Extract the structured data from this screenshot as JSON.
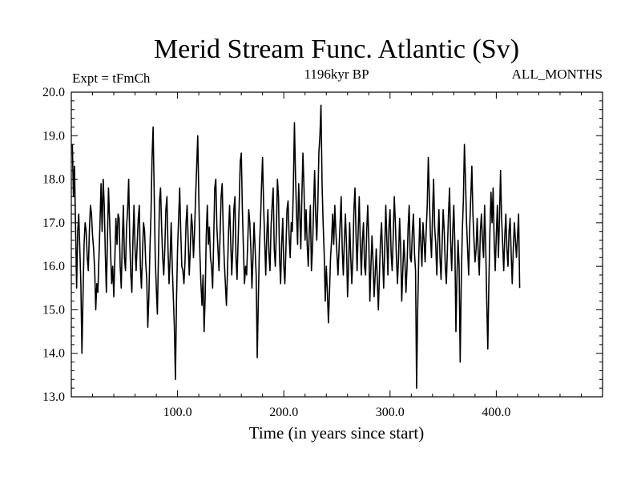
{
  "chart_data": {
    "type": "line",
    "title": "Merid Stream Func. Atlantic (Sv)",
    "subtitle_left": "Expt = tFmCh",
    "subtitle_center": "1196kyr BP",
    "subtitle_right": "ALL_MONTHS",
    "xlabel": "Time (in years since start)",
    "ylabel": "",
    "xlim": [
      0,
      500
    ],
    "ylim": [
      13.0,
      20.0
    ],
    "x_ticks": [
      100,
      200,
      300,
      400
    ],
    "x_tick_labels": [
      "100.0",
      "200.0",
      "300.0",
      "400.0"
    ],
    "y_ticks": [
      13,
      14,
      15,
      16,
      17,
      18,
      19,
      20
    ],
    "y_tick_labels": [
      "13.0",
      "14.0",
      "15.0",
      "16.0",
      "17.0",
      "18.0",
      "19.0",
      "20.0"
    ],
    "grid": false,
    "series": [
      {
        "name": "Merid Stream Func. Atlantic",
        "color": "#000000",
        "x_start": 1,
        "x_step": 1,
        "values": [
          18.8,
          17.6,
          18.3,
          16.9,
          15.5,
          16.8,
          17.2,
          16.4,
          15.6,
          14.0,
          15.3,
          16.5,
          17.0,
          16.8,
          16.2,
          15.9,
          16.8,
          17.4,
          17.2,
          16.7,
          16.4,
          15.9,
          15.0,
          15.6,
          15.4,
          16.2,
          17.0,
          17.9,
          16.8,
          18.0,
          17.4,
          16.3,
          15.4,
          16.6,
          17.8,
          17.1,
          16.3,
          15.6,
          16.0,
          15.3,
          16.2,
          17.1,
          16.5,
          17.2,
          17.1,
          16.0,
          15.5,
          16.6,
          17.4,
          16.2,
          15.9,
          16.9,
          17.3,
          18.0,
          16.6,
          15.8,
          15.4,
          16.6,
          17.4,
          16.4,
          15.9,
          16.5,
          17.1,
          17.4,
          16.0,
          15.5,
          16.3,
          17.0,
          16.8,
          16.1,
          15.7,
          14.6,
          15.3,
          16.4,
          17.2,
          18.5,
          19.2,
          17.7,
          16.2,
          15.5,
          14.9,
          16.2,
          17.5,
          17.8,
          16.9,
          16.2,
          15.8,
          16.4,
          17.3,
          17.6,
          16.4,
          15.6,
          16.2,
          17.0,
          16.0,
          15.3,
          14.6,
          13.4,
          15.2,
          16.4,
          17.1,
          17.8,
          16.8,
          16.0,
          15.9,
          15.6,
          16.1,
          17.0,
          17.4,
          16.6,
          15.8,
          16.4,
          17.2,
          16.9,
          16.2,
          16.8,
          17.6,
          18.3,
          19.0,
          17.6,
          16.3,
          15.6,
          15.1,
          15.8,
          14.5,
          15.3,
          16.7,
          17.4,
          16.5,
          16.9,
          16.2,
          16.0,
          15.5,
          16.6,
          17.8,
          18.0,
          16.9,
          16.4,
          15.9,
          16.7,
          17.6,
          17.9,
          16.8,
          16.1,
          15.6,
          15.1,
          15.9,
          16.8,
          17.4,
          16.6,
          15.8,
          16.4,
          17.3,
          17.6,
          16.2,
          15.7,
          16.6,
          17.4,
          18.4,
          18.6,
          17.3,
          16.4,
          15.6,
          16.0,
          15.8,
          16.5,
          17.3,
          17.0,
          16.4,
          15.5,
          16.2,
          17.0,
          16.4,
          15.8,
          13.9,
          15.2,
          16.4,
          17.0,
          17.8,
          18.5,
          17.4,
          16.6,
          15.8,
          16.7,
          17.3,
          16.3,
          15.9,
          16.9,
          17.4,
          17.8,
          16.4,
          16.0,
          16.8,
          18.0,
          17.6,
          16.2,
          15.6,
          16.5,
          17.1,
          16.0,
          15.6,
          16.4,
          17.3,
          17.5,
          16.7,
          16.2,
          17.0,
          16.8,
          17.8,
          19.3,
          18.1,
          17.2,
          16.5,
          17.9,
          17.2,
          16.4,
          17.6,
          18.6,
          17.8,
          16.6,
          17.3,
          16.5,
          16.0,
          16.8,
          17.4,
          15.9,
          16.4,
          17.3,
          18.2,
          17.2,
          16.6,
          17.4,
          18.6,
          19.0,
          19.7,
          17.9,
          17.0,
          16.3,
          15.2,
          16.0,
          15.4,
          14.7,
          15.4,
          16.2,
          16.6,
          17.2,
          16.5,
          17.4,
          16.8,
          16.3,
          15.8,
          16.4,
          17.0,
          17.6,
          16.4,
          15.8,
          16.6,
          17.2,
          16.5,
          15.3,
          16.0,
          17.0,
          16.2,
          15.6,
          16.2,
          17.3,
          17.8,
          16.7,
          15.9,
          16.8,
          17.6,
          16.5,
          15.8,
          16.6,
          17.0,
          16.0,
          15.8,
          16.8,
          17.4,
          16.6,
          15.2,
          16.0,
          16.7,
          16.1,
          15.3,
          15.8,
          16.4,
          15.7,
          15.0,
          15.8,
          16.6,
          17.0,
          16.2,
          15.5,
          16.4,
          17.4,
          16.6,
          15.8,
          16.9,
          17.3,
          16.3,
          15.9,
          16.7,
          17.6,
          17.0,
          16.2,
          15.6,
          16.2,
          17.1,
          16.4,
          15.2,
          15.9,
          16.6,
          16.1,
          15.4,
          16.0,
          16.9,
          17.4,
          16.2,
          16.1,
          16.8,
          17.2,
          16.3,
          15.9,
          13.2,
          15.0,
          16.2,
          17.1,
          16.5,
          16.0,
          17.0,
          16.6,
          16.1,
          16.8,
          17.4,
          18.5,
          17.6,
          16.7,
          16.2,
          17.2,
          18.0,
          16.9,
          16.5,
          15.8,
          16.6,
          17.3,
          16.2,
          15.7,
          16.5,
          17.3,
          16.8,
          16.0,
          15.6,
          16.4,
          17.2,
          17.8,
          16.6,
          15.9,
          16.8,
          17.4,
          16.5,
          14.5,
          15.8,
          16.6,
          16.0,
          13.8,
          15.6,
          16.8,
          17.5,
          18.8,
          18.0,
          17.0,
          16.4,
          15.8,
          16.9,
          17.6,
          18.3,
          17.2,
          16.6,
          16.1,
          16.4,
          17.1,
          16.3,
          15.8,
          16.8,
          17.2,
          16.6,
          16.2,
          17.4,
          16.5,
          15.2,
          14.1,
          15.6,
          16.8,
          17.7,
          17.0,
          17.8,
          16.6,
          15.9,
          16.7,
          17.4,
          16.2,
          17.1,
          18.2,
          17.1,
          16.5,
          15.9,
          16.7,
          17.2,
          16.4,
          16.0,
          16.8,
          17.1,
          16.3,
          15.6,
          16.4,
          17.0,
          16.6,
          16.2,
          16.7,
          17.2,
          15.5
        ]
      }
    ]
  }
}
